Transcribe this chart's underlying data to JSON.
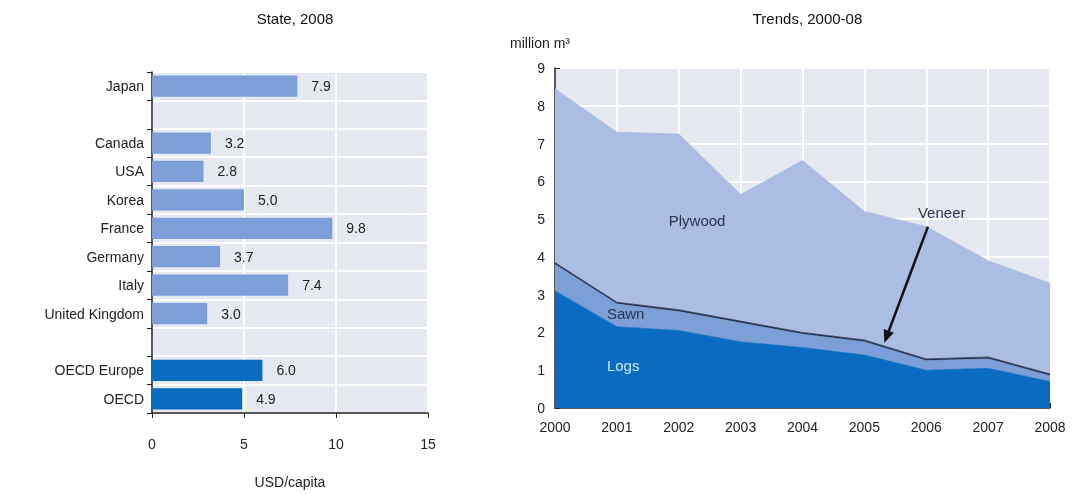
{
  "chart_data": [
    {
      "type": "bar",
      "orientation": "horizontal",
      "title": "State, 2008",
      "xlabel": "USD/capita",
      "categories": [
        "Japan",
        null,
        "Canada",
        "USA",
        "Korea",
        "France",
        "Germany",
        "Italy",
        "United Kingdom",
        null,
        "OECD Europe",
        "OECD"
      ],
      "values": [
        7.9,
        null,
        3.2,
        2.8,
        5.0,
        9.8,
        3.7,
        7.4,
        3.0,
        null,
        6.0,
        4.9
      ],
      "value_labels": [
        "7.9",
        null,
        "3.2",
        "2.8",
        "5.0",
        "9.8",
        "3.7",
        "7.4",
        "3.0",
        null,
        "6.0",
        "4.9"
      ],
      "colors": [
        "#7b9fd6",
        "#7b9fd6",
        "#7b9fd6",
        "#7b9fd6",
        "#7b9fd6",
        "#7b9fd6",
        "#7b9fd6",
        "#7b9fd6",
        "#7b9fd6",
        "#7b9fd6",
        "#0a6cc0",
        "#0a6cc0"
      ],
      "xlim": [
        0,
        15
      ],
      "xticks": [
        0,
        5,
        10,
        15
      ],
      "grid": "x"
    },
    {
      "type": "area",
      "stacked": true,
      "title": "Trends, 2000-08",
      "ylabel": "million m³",
      "categories": [
        "2000",
        "2001",
        "2002",
        "2003",
        "2004",
        "2005",
        "2006",
        "2007",
        "2008"
      ],
      "series": [
        {
          "name": "Logs",
          "color": "#0a6cc0",
          "values": [
            3.1,
            2.15,
            2.05,
            1.75,
            1.6,
            1.4,
            1.0,
            1.05,
            0.7
          ]
        },
        {
          "name": "Sawn",
          "color": "#7b9fd6",
          "values": [
            0.7,
            0.6,
            0.5,
            0.5,
            0.35,
            0.35,
            0.25,
            0.25,
            0.15
          ]
        },
        {
          "name": "Veneer",
          "color": "#25324f",
          "values": [
            0.05,
            0.05,
            0.05,
            0.05,
            0.05,
            0.05,
            0.05,
            0.05,
            0.05
          ]
        },
        {
          "name": "Plywood",
          "color": "#abbde3",
          "values": [
            4.6,
            4.5,
            4.65,
            3.35,
            4.55,
            3.4,
            3.5,
            2.55,
            2.4
          ]
        }
      ],
      "ylim": [
        0,
        9
      ],
      "yticks": [
        0,
        1,
        2,
        3,
        4,
        5,
        6,
        7,
        8,
        9
      ],
      "grid": true
    }
  ]
}
